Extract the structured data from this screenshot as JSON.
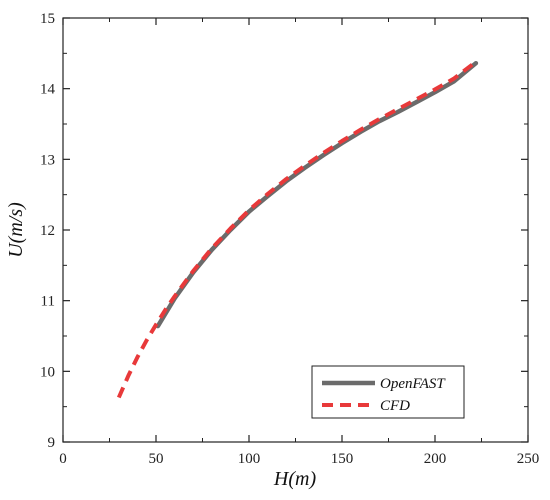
{
  "chart_data": {
    "type": "line",
    "xlabel": "H(m)",
    "ylabel": "U(m/s)",
    "xlim": [
      0,
      250
    ],
    "ylim": [
      9,
      15
    ],
    "xticks": [
      0,
      50,
      100,
      150,
      200,
      250
    ],
    "yticks": [
      9,
      10,
      11,
      12,
      13,
      14,
      15
    ],
    "grid": false,
    "legend_position": "bottom-right",
    "series": [
      {
        "name": "OpenFAST",
        "color": "#6b6b6b",
        "style": "solid",
        "x": [
          51,
          60,
          70,
          80,
          90,
          100,
          110,
          120,
          130,
          140,
          150,
          160,
          170,
          180,
          190,
          200,
          210,
          222
        ],
        "y": [
          10.64,
          11.03,
          11.4,
          11.72,
          12.0,
          12.26,
          12.48,
          12.69,
          12.88,
          13.06,
          13.23,
          13.39,
          13.54,
          13.67,
          13.81,
          13.95,
          14.1,
          14.36
        ]
      },
      {
        "name": "CFD",
        "color": "#e8393a",
        "style": "dashed",
        "x": [
          30,
          35,
          40,
          45,
          50,
          55,
          60,
          70,
          80,
          90,
          100,
          110,
          120,
          130,
          140,
          150,
          160,
          170,
          180,
          190,
          200,
          210,
          222
        ],
        "y": [
          9.63,
          9.93,
          10.2,
          10.44,
          10.66,
          10.87,
          11.06,
          11.42,
          11.74,
          12.02,
          12.28,
          12.51,
          12.72,
          12.91,
          13.09,
          13.26,
          13.42,
          13.57,
          13.71,
          13.85,
          13.99,
          14.14,
          14.38
        ]
      }
    ]
  }
}
